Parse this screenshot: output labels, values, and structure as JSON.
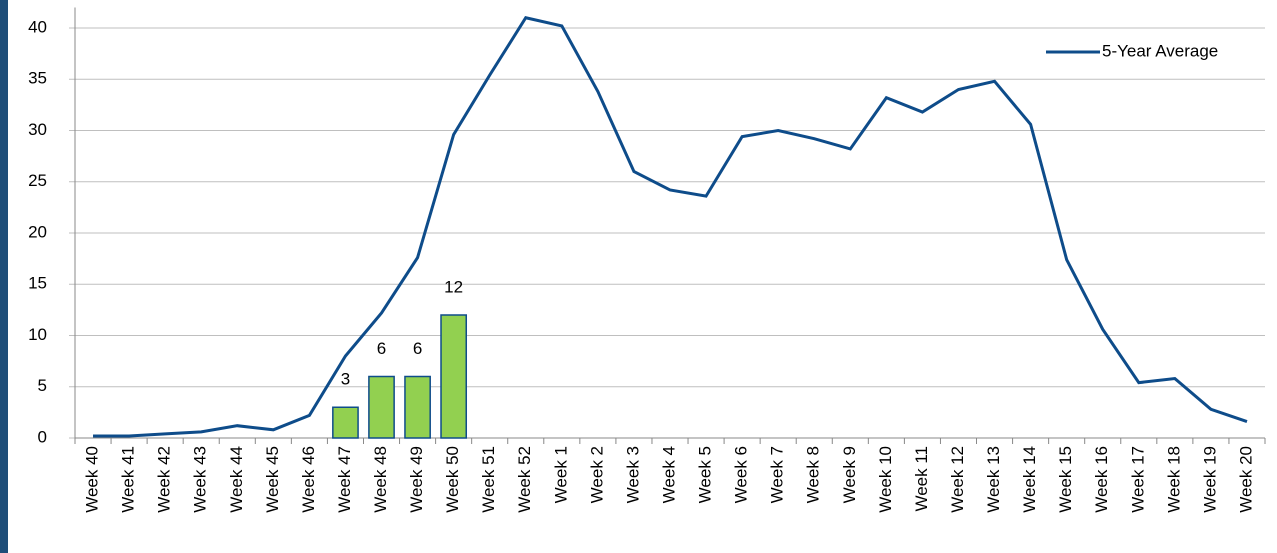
{
  "chart_data": {
    "type": "combo",
    "categories": [
      "Week 40",
      "Week 41",
      "Week 42",
      "Week 43",
      "Week 44",
      "Week 45",
      "Week 46",
      "Week 47",
      "Week 48",
      "Week 49",
      "Week 50",
      "Week 51",
      "Week 52",
      "Week 1",
      "Week 2",
      "Week 3",
      "Week 4",
      "Week 5",
      "Week 6",
      "Week 7",
      "Week 8",
      "Week 9",
      "Week 10",
      "Week 11",
      "Week 12",
      "Week 13",
      "Week 14",
      "Week 15",
      "Week 16",
      "Week 17",
      "Week 18",
      "Week 19",
      "Week 20"
    ],
    "series": [
      {
        "kind": "bar",
        "color": "#92d050",
        "values": [
          null,
          null,
          null,
          null,
          null,
          null,
          null,
          3,
          6,
          6,
          12,
          null,
          null,
          null,
          null,
          null,
          null,
          null,
          null,
          null,
          null,
          null,
          null,
          null,
          null,
          null,
          null,
          null,
          null,
          null,
          null,
          null,
          null
        ]
      },
      {
        "kind": "line",
        "name": "5-Year Average",
        "color": "#0e4c8a",
        "values": [
          0.2,
          0.2,
          0.4,
          0.6,
          1.2,
          0.8,
          2.2,
          8,
          12.2,
          17.6,
          29.6,
          35.4,
          41,
          40.2,
          33.8,
          26,
          24.2,
          23.6,
          29.4,
          30,
          29.2,
          28.2,
          33.2,
          31.8,
          34,
          34.8,
          30.6,
          17.4,
          10.6,
          5.4,
          5.8,
          2.8,
          1.6
        ]
      }
    ],
    "ylim": [
      0,
      42
    ],
    "yticks": [
      0,
      5,
      10,
      15,
      20,
      25,
      30,
      35,
      40
    ],
    "grid": true,
    "legend": "top-right"
  }
}
